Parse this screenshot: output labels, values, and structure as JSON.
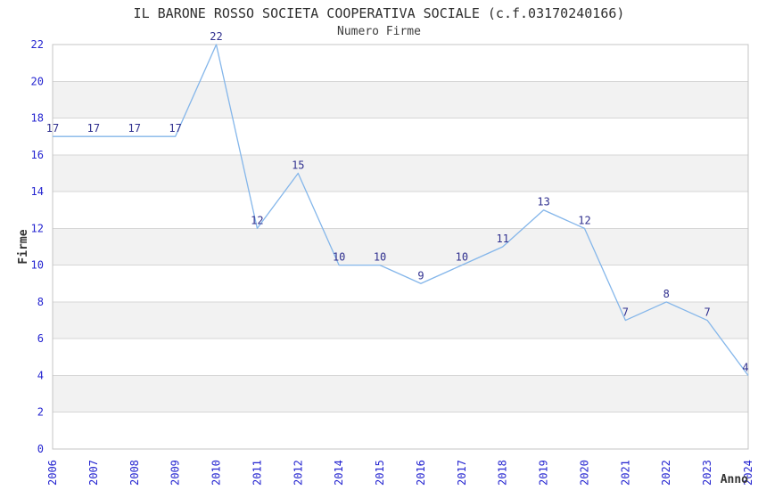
{
  "chart_data": {
    "type": "line",
    "title": "IL BARONE ROSSO SOCIETA COOPERATIVA SOCIALE (c.f.03170240166)",
    "subtitle": "Numero Firme",
    "xlabel": "Anno",
    "ylabel": "Firme",
    "categories": [
      "2006",
      "2007",
      "2008",
      "2009",
      "2010",
      "2011",
      "2012",
      "2014",
      "2015",
      "2016",
      "2017",
      "2018",
      "2019",
      "2020",
      "2021",
      "2022",
      "2023",
      "2024"
    ],
    "values": [
      17,
      17,
      17,
      17,
      22,
      12,
      15,
      10,
      10,
      9,
      10,
      11,
      13,
      12,
      7,
      8,
      7,
      4
    ],
    "ylim": [
      0,
      22
    ],
    "ytick_step": 2,
    "grid": "horizontal-lines-with-alternating-bands",
    "legend": "none",
    "data_labels": "shown-above-points",
    "x_tick_rotation": -90,
    "colors": {
      "line": "#84B6EA",
      "tick_label": "#2424D0",
      "data_label": "#30308F",
      "band": "#F2F2F2",
      "grid_line": "#D6D6D6",
      "border": "#C4C4C4",
      "title": "#2E2E2E",
      "subtitle": "#3C3C3C",
      "axis_title": "#333333",
      "background": "#FFFFFF"
    }
  }
}
